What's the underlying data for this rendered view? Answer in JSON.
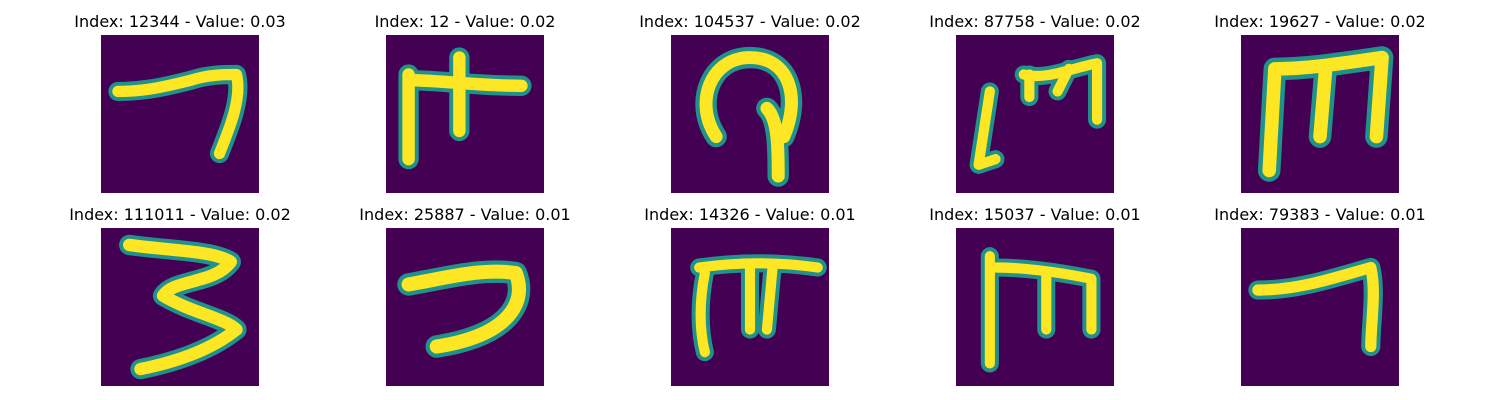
{
  "figure": {
    "panels": [
      {
        "title": "Index: 12344 - Value: 0.03",
        "glyph": "seven-flat"
      },
      {
        "title": "Index: 12 - Value: 0.02",
        "glyph": "pi-like"
      },
      {
        "title": "Index: 104537 - Value: 0.02",
        "glyph": "hook-loop"
      },
      {
        "title": "Index: 87758 - Value: 0.02",
        "glyph": "m-bracket"
      },
      {
        "title": "Index: 19627 - Value: 0.02",
        "glyph": "m-bold"
      },
      {
        "title": "Index: 111011 - Value: 0.02",
        "glyph": "three"
      },
      {
        "title": "Index: 25887 - Value: 0.01",
        "glyph": "hook-curve"
      },
      {
        "title": "Index: 14326 - Value: 0.01",
        "glyph": "pi-tall"
      },
      {
        "title": "Index: 15037 - Value: 0.01",
        "glyph": "m-tall"
      },
      {
        "title": "Index: 79383 - Value: 0.01",
        "glyph": "seven-slim"
      }
    ],
    "colors": {
      "background": "#440154",
      "stroke_edge": "#21918c",
      "stroke_core": "#fde725"
    }
  }
}
